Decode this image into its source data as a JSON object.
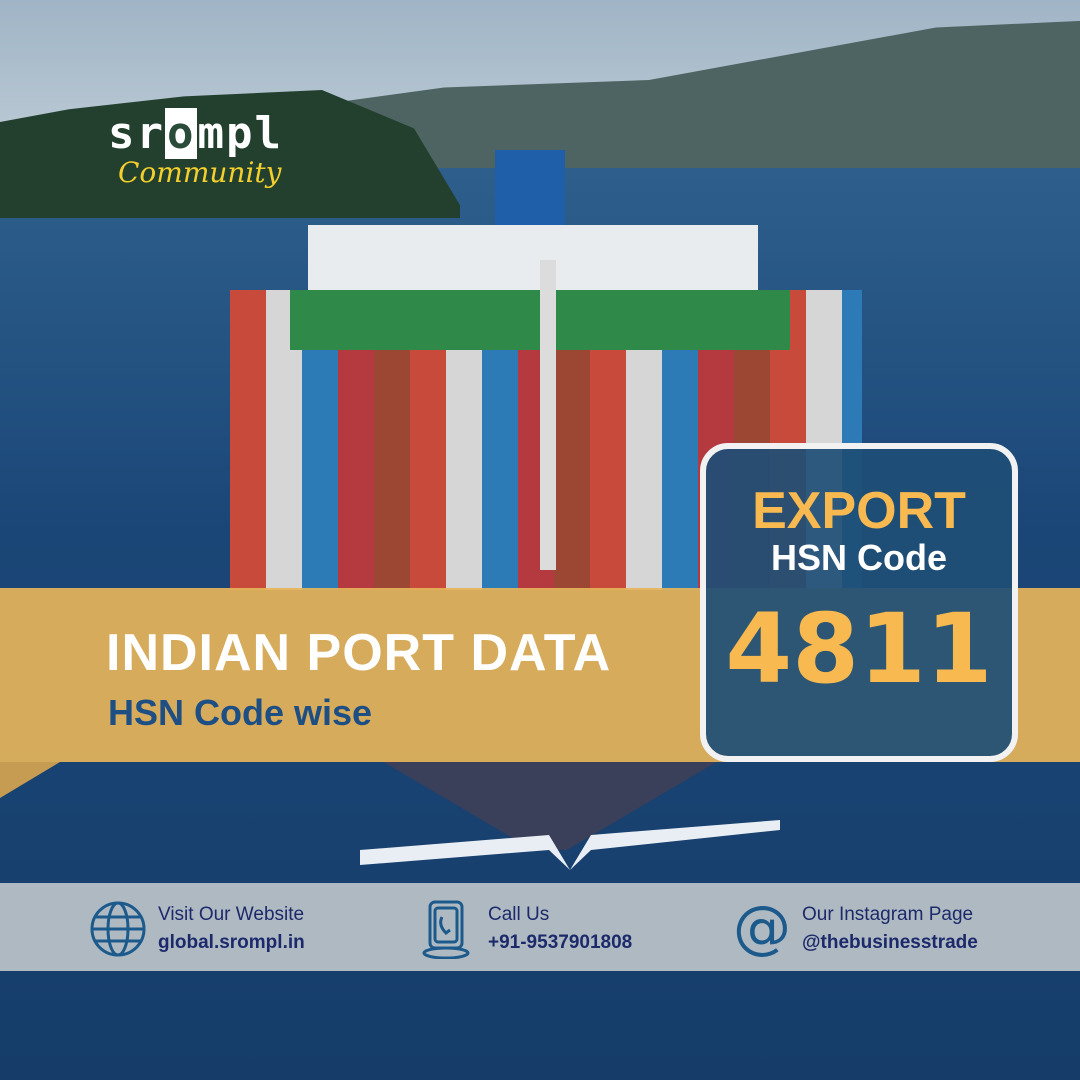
{
  "logo": {
    "brand": "srompl",
    "tagline": "Community"
  },
  "banner": {
    "title": "INDIAN PORT DATA",
    "subtitle": "HSN Code wise"
  },
  "code_box": {
    "line1": "EXPORT",
    "line2": "HSN Code",
    "code": "4811"
  },
  "footer": {
    "website": {
      "icon": "globe-icon",
      "label": "Visit Our Website",
      "value": "global.srompl.in"
    },
    "phone": {
      "icon": "phone-icon",
      "label": "Call Us",
      "value": "+91-9537901808"
    },
    "instagram": {
      "icon": "at-icon",
      "label": "Our Instagram Page",
      "value": "@thebusinesstrade"
    }
  },
  "colors": {
    "gold": "#f7b950",
    "navy": "#1d4f84",
    "box": "#1e4e76",
    "band": "#e6b45a"
  }
}
